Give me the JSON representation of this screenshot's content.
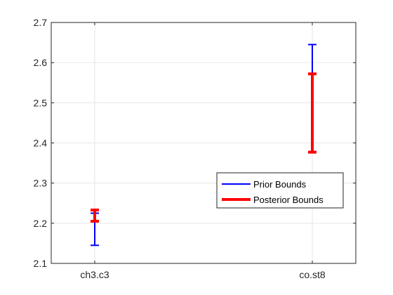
{
  "chart_data": {
    "type": "errorbar",
    "title": "",
    "xlabel": "",
    "ylabel": "",
    "categories": [
      "ch3.c3",
      "co.st8"
    ],
    "ylim": [
      2.1,
      2.7
    ],
    "yticks": [
      "2.1",
      "2.2",
      "2.3",
      "2.4",
      "2.5",
      "2.6",
      "2.7"
    ],
    "grid": true,
    "legend_position": "right",
    "series": [
      {
        "name": "Prior Bounds",
        "color": "#0000ff",
        "bounds": [
          [
            2.145,
            2.225
          ],
          [
            2.572,
            2.645
          ]
        ]
      },
      {
        "name": "Posterior Bounds",
        "color": "#ff0000",
        "bounds": [
          [
            2.205,
            2.233
          ],
          [
            2.377,
            2.572
          ]
        ]
      }
    ]
  }
}
